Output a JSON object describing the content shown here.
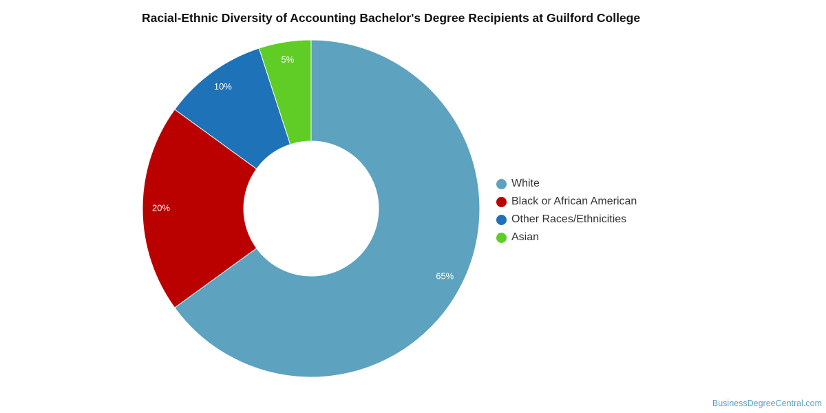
{
  "chart_data": {
    "type": "pie",
    "title": "Racial-Ethnic Diversity of Accounting Bachelor's Degree Recipients at Guilford College",
    "donut": true,
    "legend_position": "right",
    "slices": [
      {
        "label": "White",
        "value": 65,
        "display": "65%",
        "color": "#5da2bf"
      },
      {
        "label": "Black or African American",
        "value": 20,
        "display": "20%",
        "color": "#bb0000"
      },
      {
        "label": "Other Races/Ethnicities",
        "value": 10,
        "display": "10%",
        "color": "#1e72b8"
      },
      {
        "label": "Asian",
        "value": 5,
        "display": "5%",
        "color": "#5fcd26"
      }
    ]
  },
  "footer": {
    "source": "BusinessDegreeCentral.com"
  }
}
